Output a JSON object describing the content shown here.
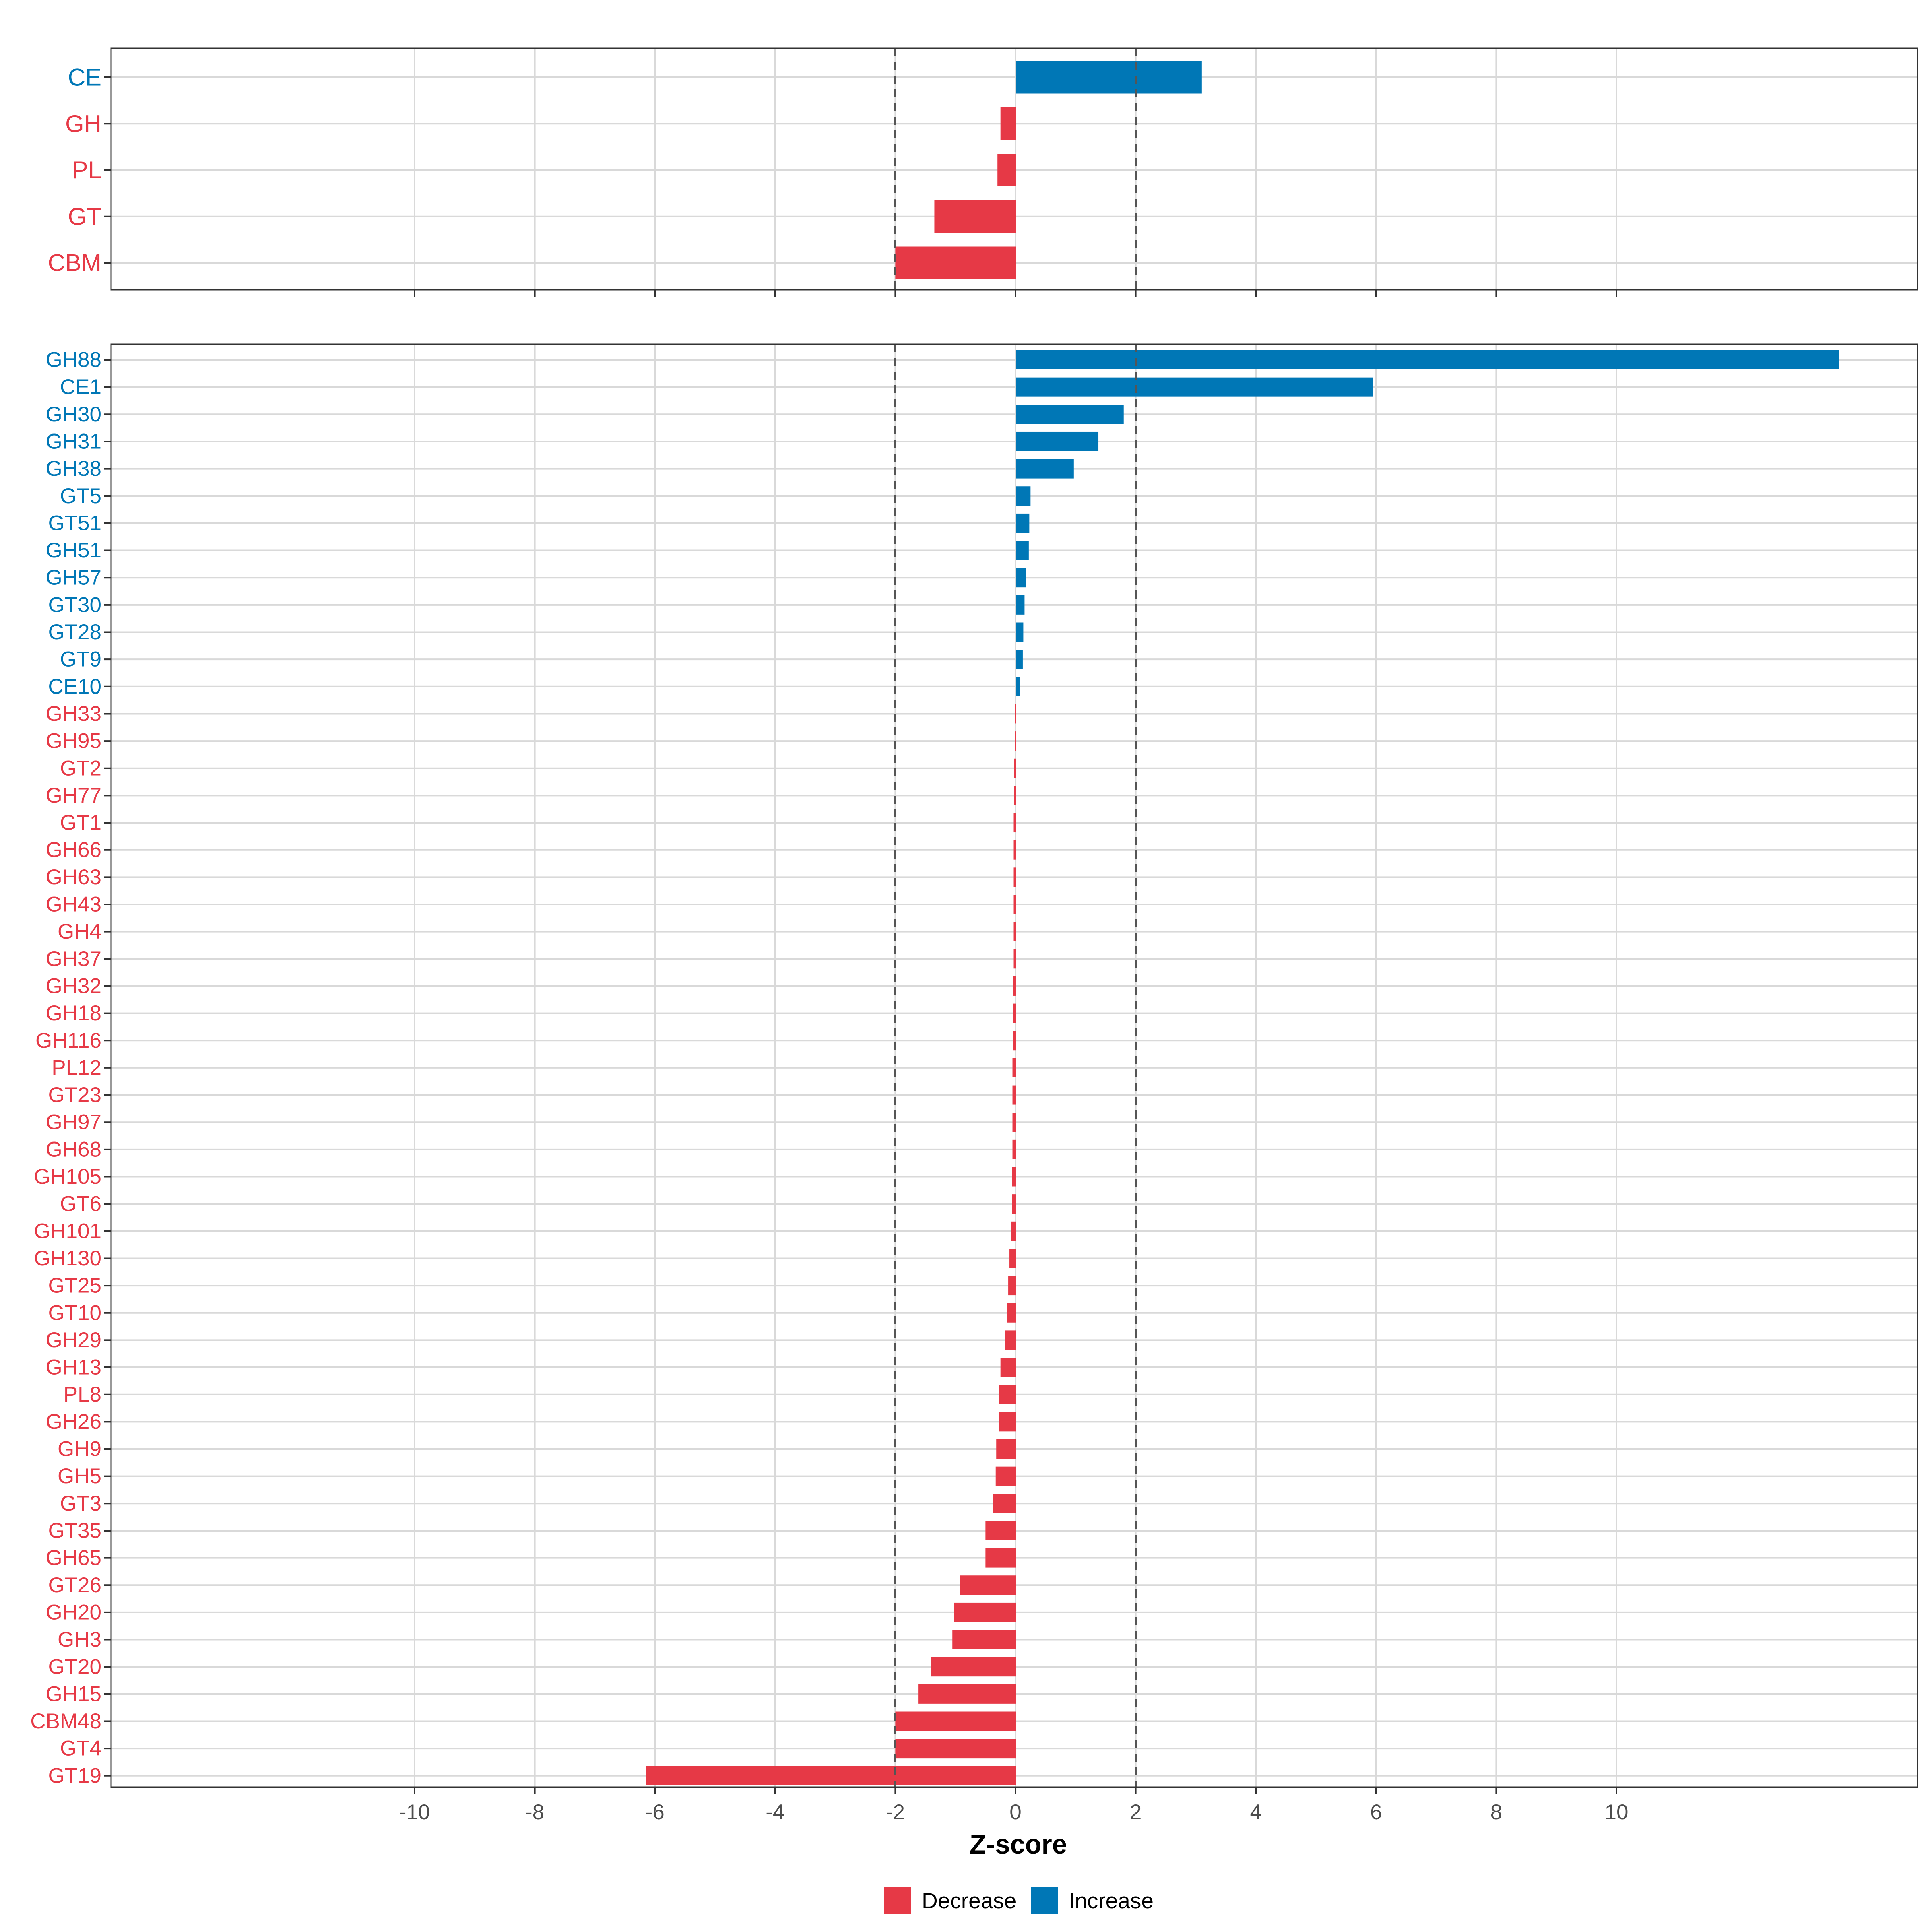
{
  "colors": {
    "decrease": "#e63946",
    "increase": "#0077b6",
    "grid": "#d9d9d9",
    "refline": "#555555",
    "tick_text": "#4d4d4d"
  },
  "chart_data": [
    {
      "type": "bar",
      "orientation": "horizontal",
      "panel": "top",
      "categories": [
        "CE",
        "GH",
        "PL",
        "GT",
        "CBM"
      ],
      "values": [
        3.1,
        -0.25,
        -0.3,
        -1.35,
        -2.0
      ],
      "xlim": [
        -15,
        15
      ],
      "xticks": [
        -10,
        -8,
        -6,
        -4,
        -2,
        0,
        2,
        4,
        6,
        8,
        10
      ],
      "show_tick_labels": false,
      "reference_lines": [
        -2,
        2
      ],
      "grid": true
    },
    {
      "type": "bar",
      "orientation": "horizontal",
      "panel": "bottom",
      "categories": [
        "GH88",
        "CE1",
        "GH30",
        "GH31",
        "GH38",
        "GT5",
        "GT51",
        "GH51",
        "GH57",
        "GT30",
        "GT28",
        "GT9",
        "CE10",
        "GH33",
        "GH95",
        "GT2",
        "GH77",
        "GT1",
        "GH66",
        "GH63",
        "GH43",
        "GH4",
        "GH37",
        "GH32",
        "GH18",
        "GH116",
        "PL12",
        "GT23",
        "GH97",
        "GH68",
        "GH105",
        "GT6",
        "GH101",
        "GH130",
        "GT25",
        "GT10",
        "GH29",
        "GH13",
        "PL8",
        "GH26",
        "GH9",
        "GH5",
        "GT3",
        "GT35",
        "GH65",
        "GT26",
        "GH20",
        "GH3",
        "GT20",
        "GH15",
        "CBM48",
        "GT4",
        "GT19"
      ],
      "values": [
        13.7,
        5.95,
        1.8,
        1.38,
        0.97,
        0.25,
        0.23,
        0.22,
        0.18,
        0.15,
        0.13,
        0.12,
        0.08,
        -0.01,
        -0.01,
        -0.02,
        -0.02,
        -0.03,
        -0.03,
        -0.03,
        -0.03,
        -0.03,
        -0.03,
        -0.04,
        -0.04,
        -0.04,
        -0.05,
        -0.05,
        -0.05,
        -0.05,
        -0.06,
        -0.06,
        -0.08,
        -0.1,
        -0.12,
        -0.14,
        -0.18,
        -0.25,
        -0.27,
        -0.28,
        -0.32,
        -0.33,
        -0.38,
        -0.5,
        -0.5,
        -0.93,
        -1.03,
        -1.05,
        -1.4,
        -1.62,
        -2.0,
        -2.0,
        -6.15
      ],
      "xlim": [
        -15,
        15
      ],
      "xticks": [
        -10,
        -8,
        -6,
        -4,
        -2,
        0,
        2,
        4,
        6,
        8,
        10
      ],
      "xlabel": "Z-score",
      "reference_lines": [
        -2,
        2
      ],
      "grid": true
    }
  ],
  "legend": {
    "position": "bottom",
    "items": [
      {
        "label": "Decrease",
        "color": "#e63946"
      },
      {
        "label": "Increase",
        "color": "#0077b6"
      }
    ]
  }
}
